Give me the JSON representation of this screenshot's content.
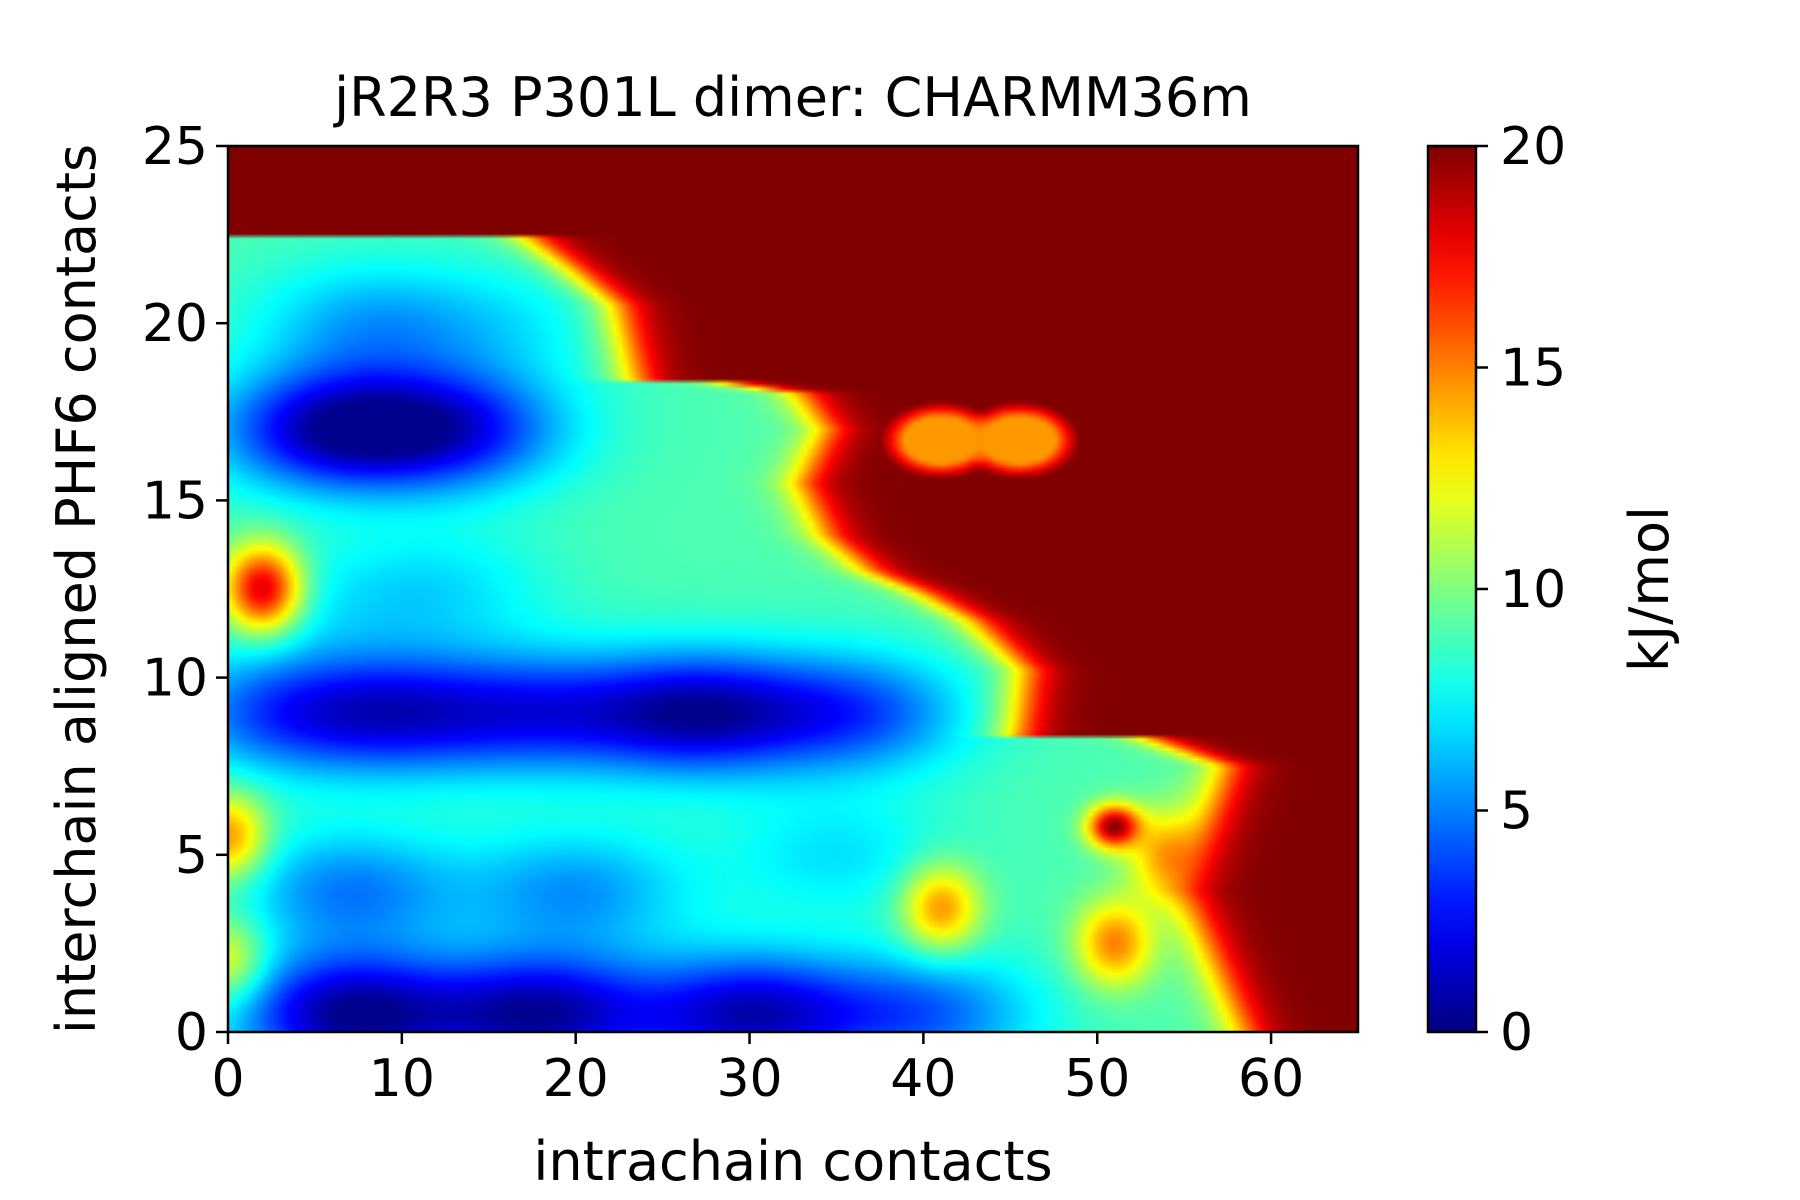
{
  "chart_data": {
    "type": "heatmap",
    "title": "jR2R3 P301L dimer: CHARMM36m",
    "xlabel": "intrachain contacts",
    "ylabel": "interchain aligned PHF6 contacts",
    "colorbar_label": "kJ/mol",
    "xlim": [
      0,
      65
    ],
    "ylim": [
      0,
      25
    ],
    "zlim": [
      0,
      20
    ],
    "x_ticks": [
      0,
      10,
      20,
      30,
      40,
      50,
      60
    ],
    "y_ticks": [
      0,
      5,
      10,
      15,
      20,
      25
    ],
    "colorbar_ticks": [
      0,
      5,
      10,
      15,
      20
    ],
    "colormap": "jet",
    "grid": false,
    "background_value": 20,
    "surface": {
      "base_value": 9,
      "minima": [
        {
          "x": 6,
          "y": 17,
          "value": 1.5
        },
        {
          "x": 13,
          "y": 17,
          "value": 3.0
        },
        {
          "x": 3,
          "y": 9,
          "value": 4.5
        },
        {
          "x": 10,
          "y": 9,
          "value": 3.5
        },
        {
          "x": 18,
          "y": 9,
          "value": 4.0
        },
        {
          "x": 27,
          "y": 9,
          "value": 1.5
        },
        {
          "x": 36,
          "y": 9,
          "value": 4.0
        },
        {
          "x": 7,
          "y": 4,
          "value": 5.0
        },
        {
          "x": 20,
          "y": 4,
          "value": 5.5
        },
        {
          "x": 7,
          "y": 0.5,
          "value": 0.5
        },
        {
          "x": 18,
          "y": 0.5,
          "value": 1.0
        },
        {
          "x": 30,
          "y": 0.5,
          "value": 1.5
        },
        {
          "x": 40,
          "y": 0.5,
          "value": 4.5
        },
        {
          "x": 5,
          "y": 12,
          "value": 8.0
        },
        {
          "x": 12,
          "y": 12.5,
          "value": 7.0
        },
        {
          "x": 16,
          "y": 20,
          "value": 7.5
        },
        {
          "x": 8,
          "y": 20,
          "value": 6.0
        },
        {
          "x": 35,
          "y": 5,
          "value": 7.0
        }
      ],
      "maxima": [
        {
          "x": 2,
          "y": 12.5,
          "value": 19
        },
        {
          "x": 0,
          "y": 5.5,
          "value": 15
        },
        {
          "x": 0,
          "y": 2,
          "value": 13
        },
        {
          "x": 41,
          "y": 3.5,
          "value": 15
        },
        {
          "x": 51,
          "y": 2.5,
          "value": 15
        },
        {
          "x": 54,
          "y": 5,
          "value": 14
        }
      ],
      "islands": [
        {
          "x": 41,
          "y": 16.7,
          "value": 14.5
        },
        {
          "x": 45.5,
          "y": 16.7,
          "value": 14.5
        }
      ]
    }
  }
}
